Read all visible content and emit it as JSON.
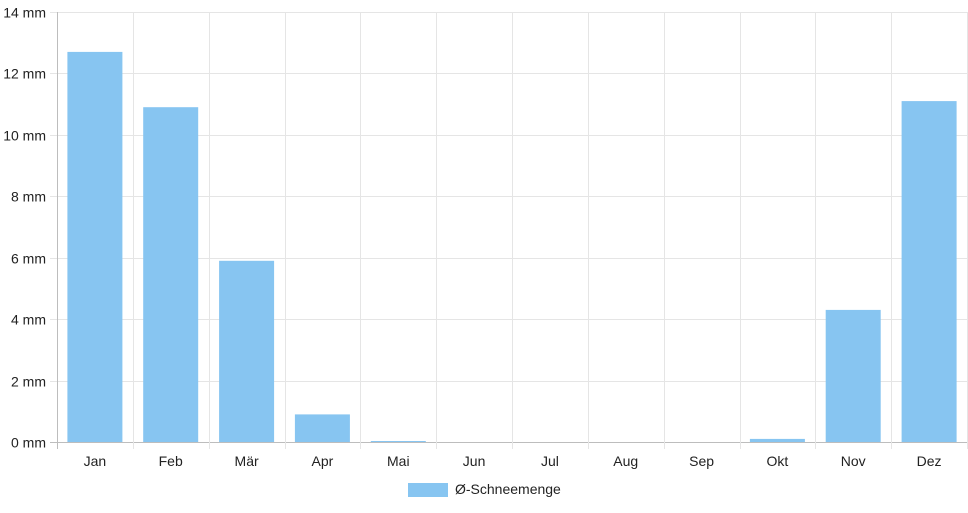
{
  "chart_data": {
    "type": "bar",
    "categories": [
      "Jan",
      "Feb",
      "Mär",
      "Apr",
      "Mai",
      "Jun",
      "Jul",
      "Aug",
      "Sep",
      "Okt",
      "Nov",
      "Dez"
    ],
    "series": [
      {
        "name": "Ø-Schneemenge",
        "values": [
          12.7,
          10.9,
          5.9,
          0.9,
          0.02,
          0,
          0,
          0,
          0,
          0.1,
          4.3,
          11.1
        ],
        "color": "#87c5f1"
      }
    ],
    "ylim": [
      0,
      14
    ],
    "y_ticks": [
      0,
      2,
      4,
      6,
      8,
      10,
      12,
      14
    ],
    "y_tick_labels": [
      "0 mm",
      "2 mm",
      "4 mm",
      "6 mm",
      "8 mm",
      "10 mm",
      "12 mm",
      "14 mm"
    ],
    "grid": true,
    "legend": "bottom-center",
    "colors": {
      "grid": "#e5e5e5",
      "axis": "#bdbdbd",
      "text": "#222222"
    }
  }
}
